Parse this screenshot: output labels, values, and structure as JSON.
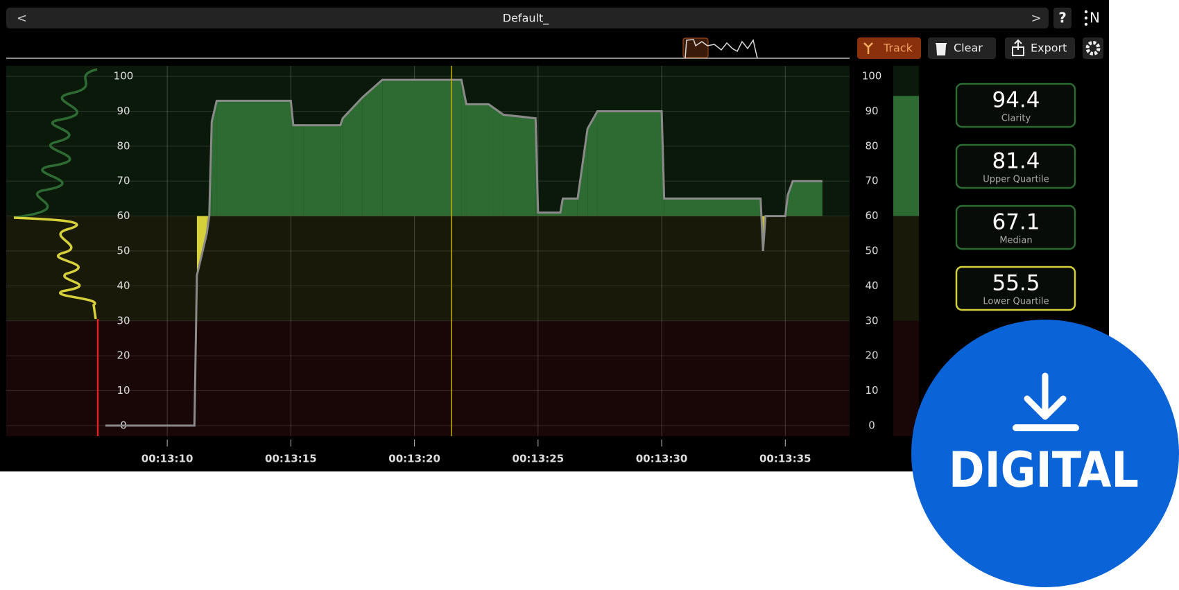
{
  "header": {
    "title": "Default_",
    "back": "<",
    "forward": ">",
    "help": "?",
    "menu": "N"
  },
  "toolbar": {
    "buttons": [
      "Track",
      "Clear",
      "Export"
    ]
  },
  "chart_data": {
    "type": "area",
    "x": [
      787.5,
      791.1,
      791.2,
      791.6,
      791.7,
      791.8,
      792.0,
      795.0,
      795.1,
      795.5,
      797.0,
      797.1,
      797.9,
      798.7,
      801.9,
      802.1,
      803.0,
      803.6,
      804.9,
      805.0,
      805.9,
      806.0,
      806.6,
      807.0,
      807.4,
      810.0,
      810.1,
      813.0,
      814.0,
      814.1,
      814.2,
      815.0,
      815.1,
      815.3,
      816.5
    ],
    "series": [
      {
        "color": "#8a8a8a",
        "values": [
          0,
          0,
          43,
          55,
          60,
          87,
          93,
          93,
          86,
          86,
          86,
          88,
          94,
          99,
          99,
          92,
          92,
          89,
          88,
          61,
          61,
          65,
          65,
          85,
          90,
          90,
          65,
          65,
          65,
          50,
          60,
          60,
          66,
          70,
          70
        ]
      }
    ],
    "xlim": [
      787.5,
      817.6
    ],
    "xticks": [
      {
        "value": 790,
        "label": "00:13:10"
      },
      {
        "value": 795,
        "label": "00:13:15"
      },
      {
        "value": 800,
        "label": "00:13:20"
      },
      {
        "value": 805,
        "label": "00:13:25"
      },
      {
        "value": 810,
        "label": "00:13:30"
      },
      {
        "value": 815,
        "label": "00:13:35"
      }
    ],
    "ylim": [
      -3,
      103
    ],
    "yticks": [
      0,
      10,
      20,
      30,
      40,
      50,
      60,
      70,
      80,
      90,
      100
    ],
    "grid": true,
    "cursor": 801.5,
    "zones": [
      {
        "min": 60,
        "band": "#0b190b",
        "mark": "#2e6b33"
      },
      {
        "min": 30,
        "band": "#191909",
        "mark": "#d6d03a"
      },
      {
        "min": 0,
        "band": "#190606",
        "mark": "#d02020"
      }
    ]
  },
  "stats": [
    {
      "value": 94.4,
      "label": "Clarity"
    },
    {
      "value": 81.4,
      "label": "Upper Quartile"
    },
    {
      "value": 67.1,
      "label": "Median"
    },
    {
      "value": 55.5,
      "label": "Lower Quartile"
    }
  ],
  "badge": {
    "text": "DIGITAL"
  }
}
